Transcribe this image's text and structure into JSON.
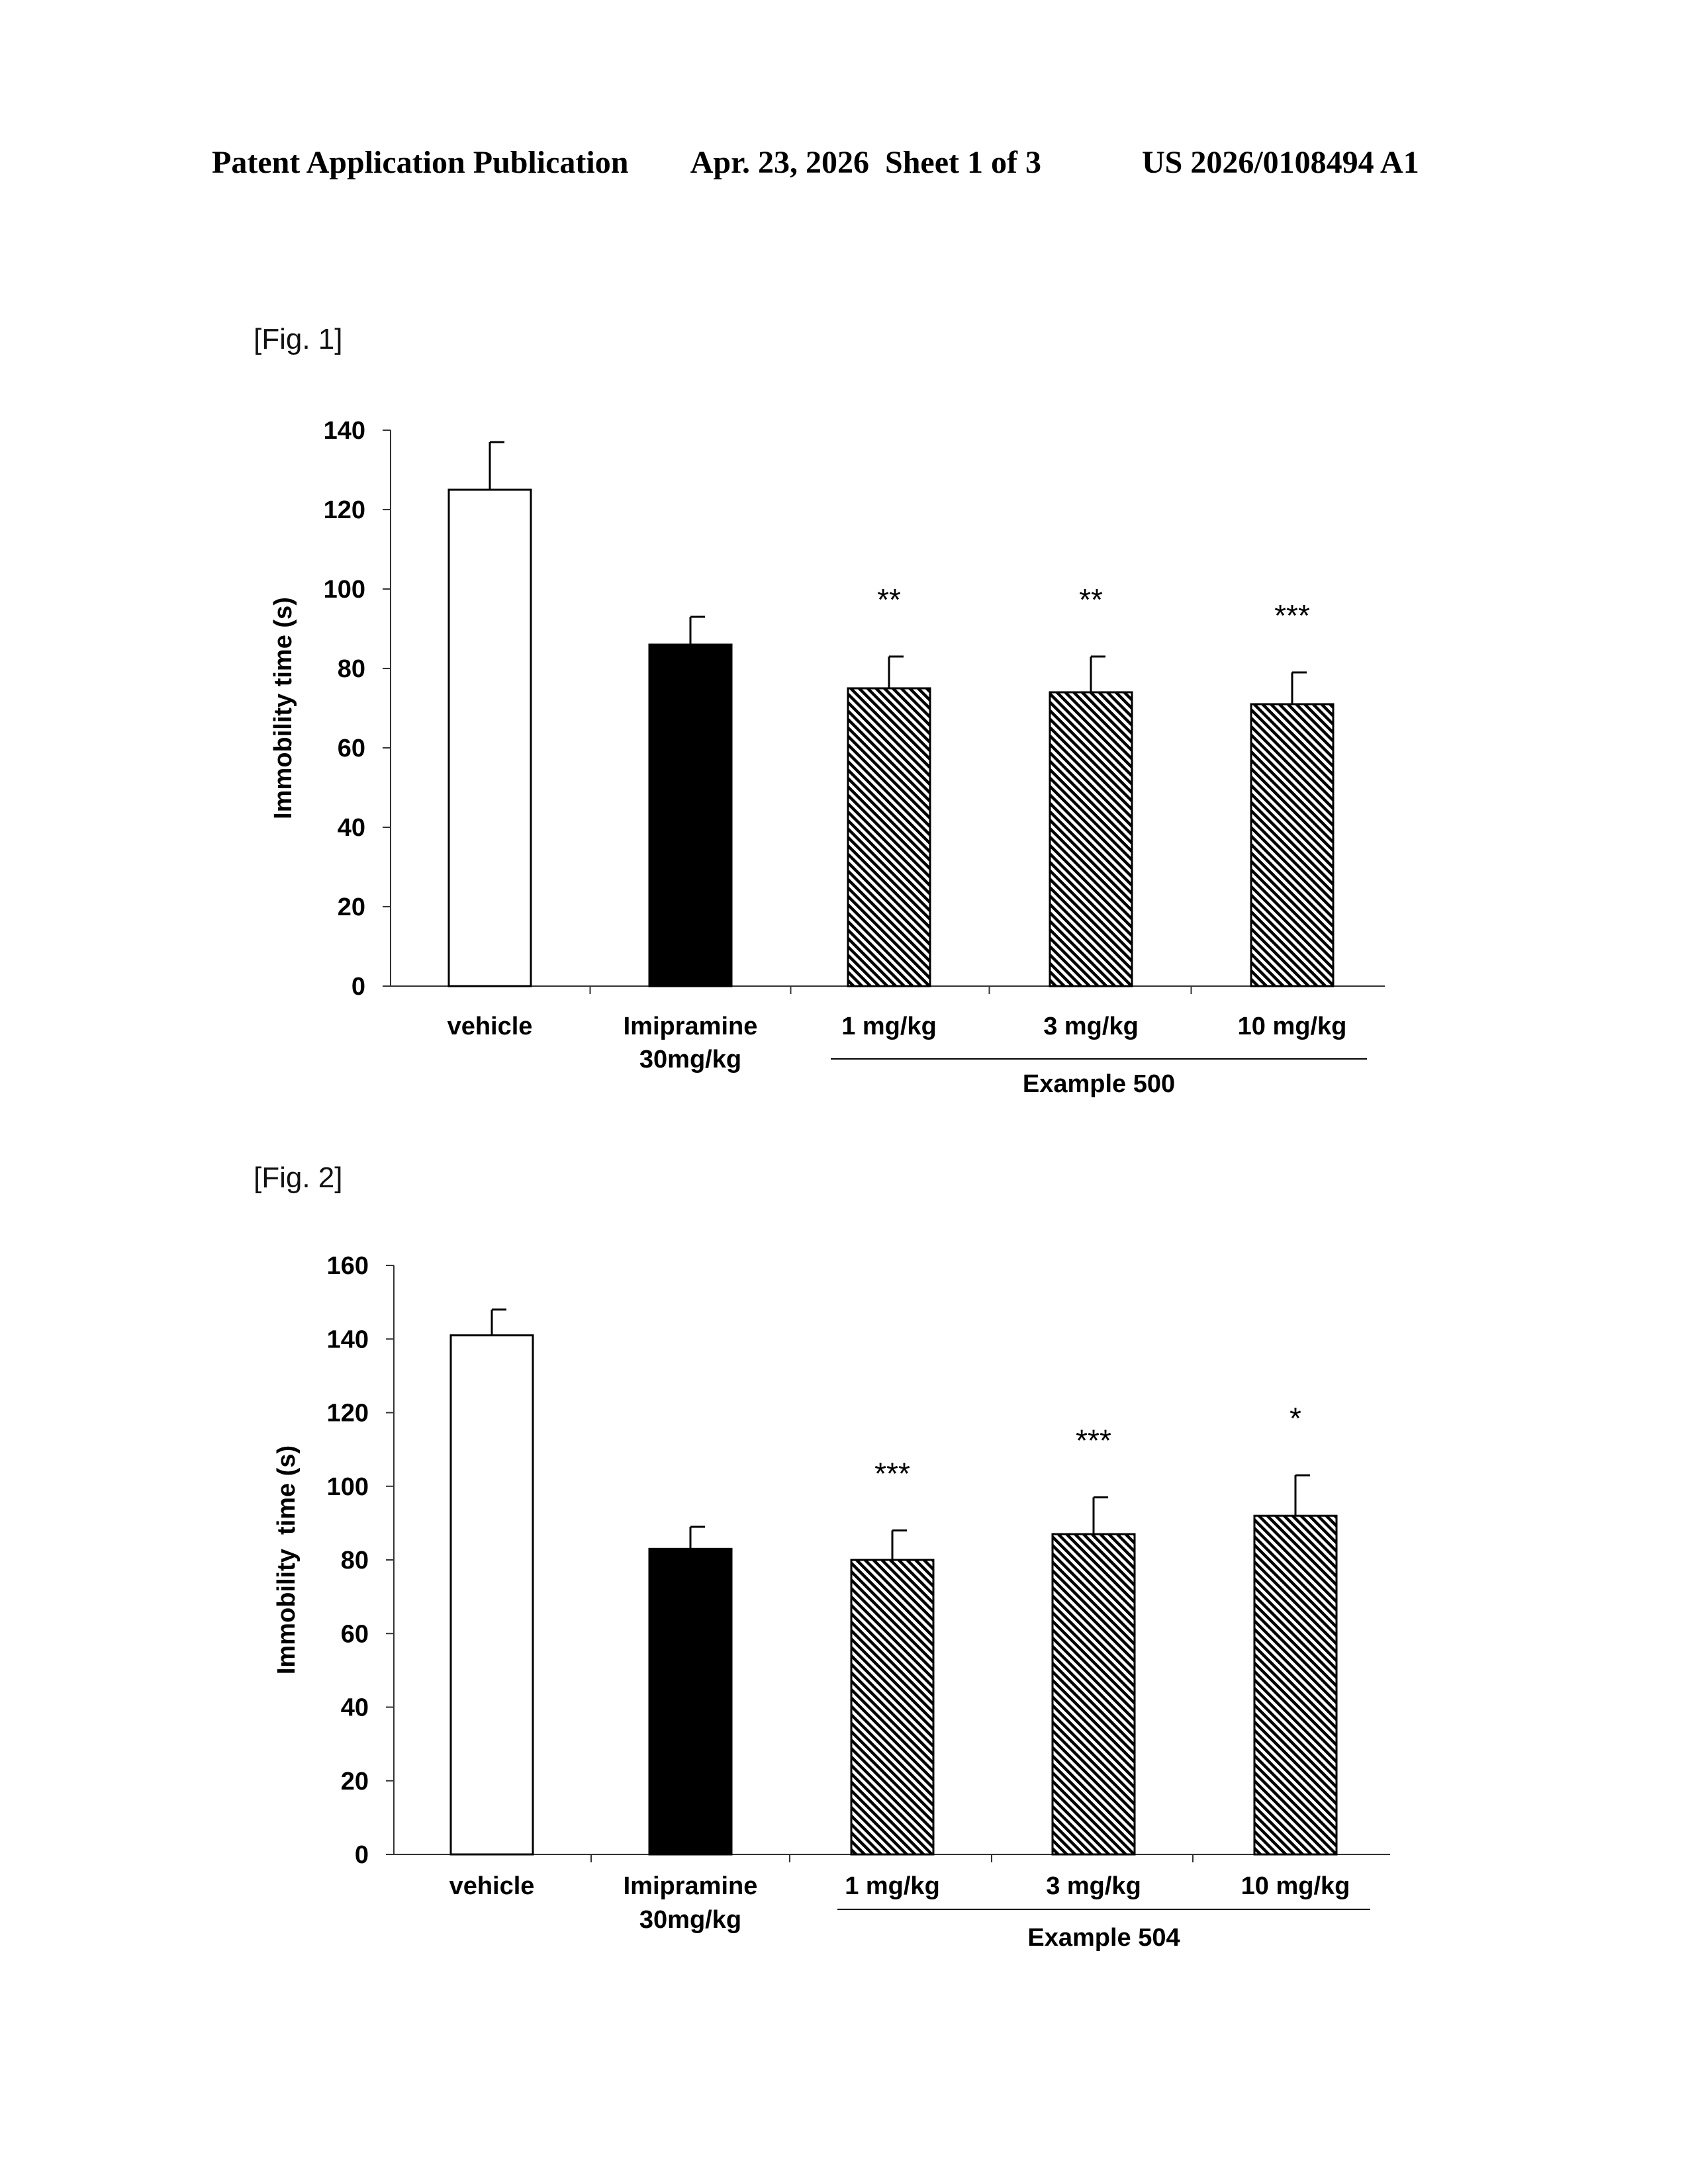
{
  "header": {
    "publication": "Patent Application Publication",
    "date_sheet": "Apr. 23, 2026  Sheet 1 of 3",
    "patent_number": "US 2026/0108494 A1"
  },
  "colors": {
    "vehicle": "#ffffff",
    "imipramine": "#000000",
    "example": "hatched"
  },
  "chart_data": [
    {
      "type": "bar",
      "figure_label": "[Fig. 1]",
      "ylabel": "Immobility time (s)",
      "ylim": [
        0,
        140
      ],
      "yticks": [
        "0",
        "20",
        "40",
        "60",
        "80",
        "100",
        "120",
        "140"
      ],
      "categories": [
        {
          "line1": "vehicle",
          "line2": ""
        },
        {
          "line1": "Imipramine",
          "line2": "30mg/kg"
        },
        {
          "line1": "1 mg/kg",
          "line2": ""
        },
        {
          "line1": "3 mg/kg",
          "line2": ""
        },
        {
          "line1": "10 mg/kg",
          "line2": ""
        }
      ],
      "values": [
        125,
        86,
        75,
        74,
        71
      ],
      "errors": [
        12,
        7,
        8,
        9,
        8
      ],
      "fills": [
        "white",
        "black",
        "hatch",
        "hatch",
        "hatch"
      ],
      "significance": [
        "",
        "",
        "**",
        "**",
        "***"
      ],
      "group_label": "Example 500"
    },
    {
      "type": "bar",
      "figure_label": "[Fig. 2]",
      "ylabel": "Immobility  time (s)",
      "ylim": [
        0,
        160
      ],
      "yticks": [
        "0",
        "20",
        "40",
        "60",
        "80",
        "100",
        "120",
        "140",
        "160"
      ],
      "categories": [
        {
          "line1": "vehicle",
          "line2": ""
        },
        {
          "line1": "Imipramine",
          "line2": "30mg/kg"
        },
        {
          "line1": "1 mg/kg",
          "line2": ""
        },
        {
          "line1": "3 mg/kg",
          "line2": ""
        },
        {
          "line1": "10 mg/kg",
          "line2": ""
        }
      ],
      "values": [
        141,
        83,
        80,
        87,
        92
      ],
      "errors": [
        7,
        6,
        8,
        10,
        11
      ],
      "fills": [
        "white",
        "black",
        "hatch",
        "hatch",
        "hatch"
      ],
      "significance": [
        "",
        "",
        "***",
        "***",
        "*"
      ],
      "group_label": "Example 504"
    }
  ]
}
